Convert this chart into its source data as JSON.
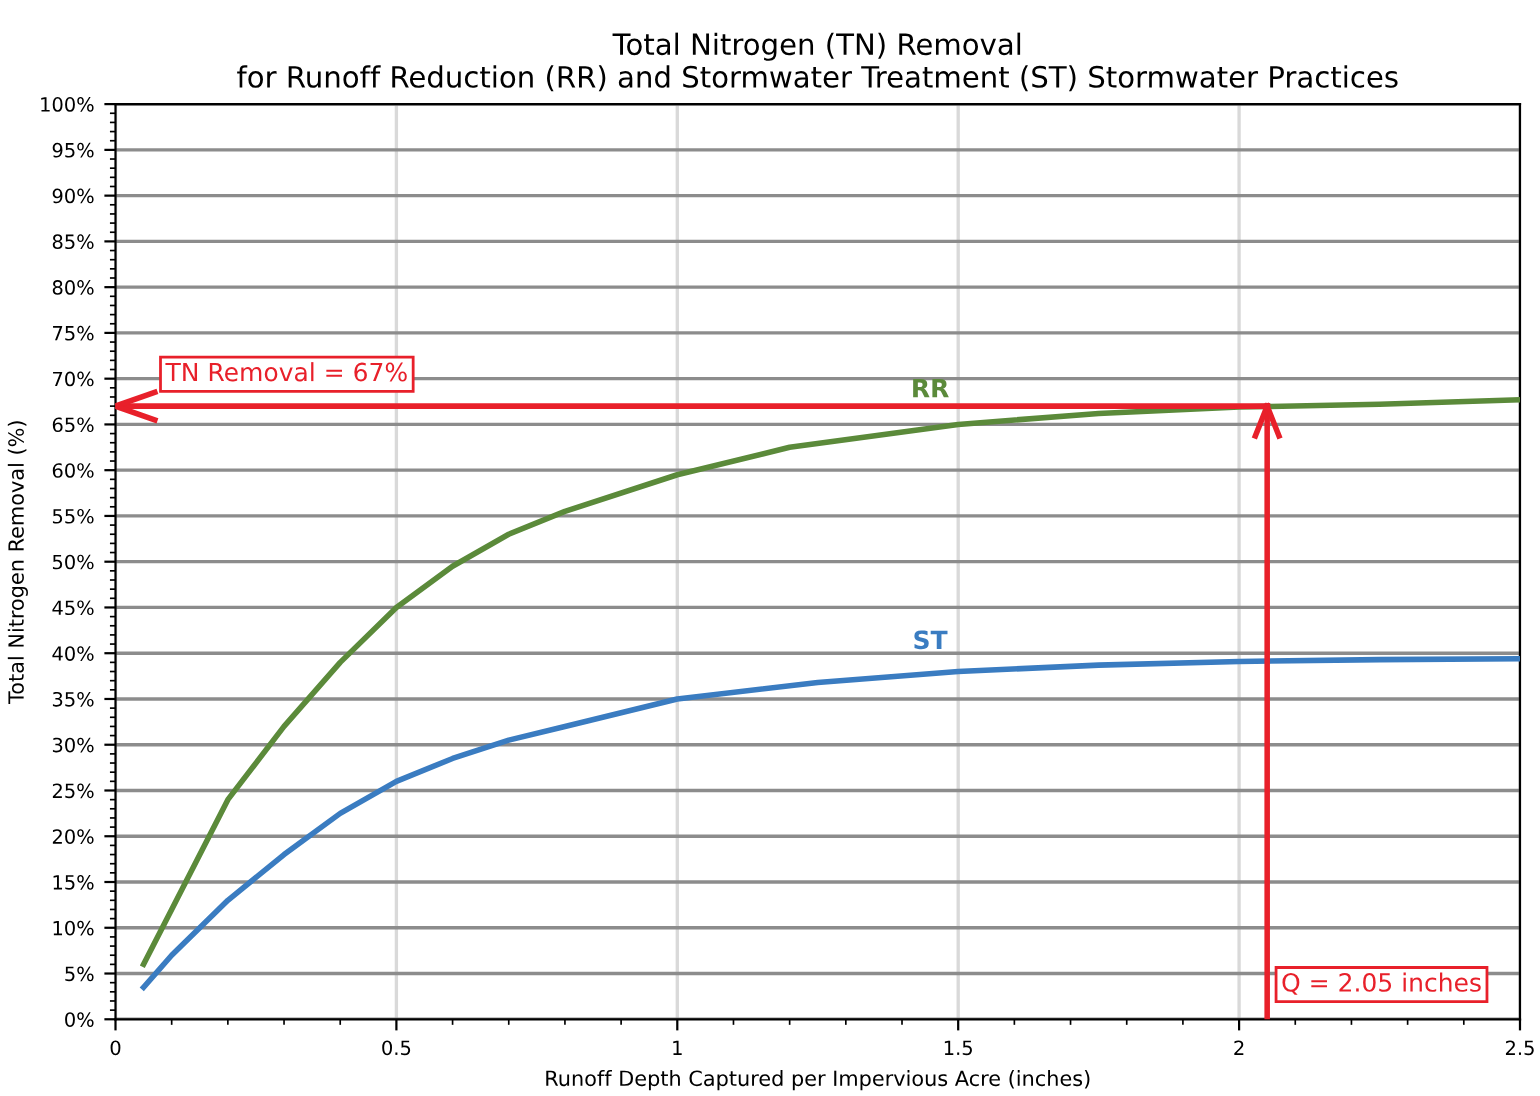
{
  "chart_data": {
    "type": "line",
    "title": "Total Nitrogen (TN) Removal\nfor Runoff Reduction (RR) and Stormwater Treatment (ST) Stormwater Practices",
    "xlabel": "Runoff Depth Captured per Impervious Acre (inches)",
    "ylabel": "Total Nitrogen Removal (%)",
    "series": [
      {
        "name": "RR",
        "color": "#5b8a3a",
        "x": [
          0.05,
          0.1,
          0.2,
          0.3,
          0.4,
          0.5,
          0.6,
          0.7,
          0.8,
          1.0,
          1.2,
          1.5,
          1.75,
          2.0,
          2.25,
          2.5
        ],
        "values": [
          6,
          12,
          24,
          32,
          39,
          45,
          49.5,
          53,
          55.5,
          59.5,
          62.5,
          65,
          66.2,
          66.9,
          67.2,
          67.7
        ]
      },
      {
        "name": "ST",
        "color": "#3a7cc1",
        "x": [
          0.05,
          0.1,
          0.2,
          0.3,
          0.4,
          0.5,
          0.6,
          0.7,
          0.8,
          1.0,
          1.25,
          1.5,
          1.75,
          2.0,
          2.25,
          2.5
        ],
        "values": [
          3.5,
          7,
          13,
          18,
          22.5,
          26,
          28.5,
          30.5,
          32,
          35,
          36.8,
          38,
          38.7,
          39.1,
          39.3,
          39.4
        ]
      }
    ],
    "ref_lines": [
      {
        "axis": "y",
        "value": 67,
        "label": "TN Removal = 67%",
        "color": "#e8202a"
      },
      {
        "axis": "x",
        "value": 2.05,
        "label": "Q = 2.05 inches",
        "color": "#e8202a"
      }
    ],
    "xlim": [
      0,
      2.5
    ],
    "xticks": [
      0,
      0.5,
      1,
      1.5,
      2,
      2.5
    ],
    "ylim": [
      0,
      100
    ],
    "yticks": [
      {
        "value": 0,
        "label": "0%"
      },
      {
        "value": 5,
        "label": "5%"
      },
      {
        "value": 10,
        "label": "10%"
      },
      {
        "value": 15,
        "label": "15%"
      },
      {
        "value": 20,
        "label": "20%"
      },
      {
        "value": 25,
        "label": "25%"
      },
      {
        "value": 30,
        "label": "30%"
      },
      {
        "value": 35,
        "label": "35%"
      },
      {
        "value": 40,
        "label": "40%"
      },
      {
        "value": 45,
        "label": "45%"
      },
      {
        "value": 50,
        "label": "50%"
      },
      {
        "value": 55,
        "label": "55%"
      },
      {
        "value": 60,
        "label": "60%"
      },
      {
        "value": 65,
        "label": "65%"
      },
      {
        "value": 70,
        "label": "70%"
      },
      {
        "value": 75,
        "label": "75%"
      },
      {
        "value": 80,
        "label": "80%"
      },
      {
        "value": 85,
        "label": "85%"
      },
      {
        "value": 90,
        "label": "90%"
      },
      {
        "value": 95,
        "label": "95%"
      },
      {
        "value": 100,
        "label": "100%"
      }
    ],
    "grid": true,
    "legend": false,
    "marker": "none",
    "line_style": "solid"
  }
}
